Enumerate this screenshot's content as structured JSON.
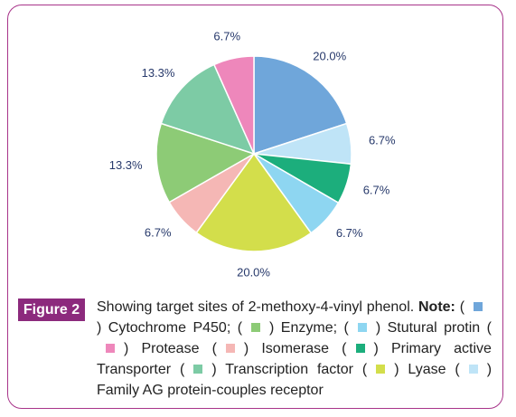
{
  "chart_data": {
    "type": "pie",
    "categories": [
      "Cytochrome P450;",
      "Family AG protein-couples receptor",
      "Primary active Transporter",
      "Stutural protin",
      "Lyase",
      "Isomerase",
      "Enzyme;",
      "Transcription factor",
      "Protease"
    ],
    "values": [
      20.0,
      6.7,
      6.7,
      6.7,
      20.0,
      6.7,
      13.3,
      13.3,
      6.7
    ],
    "value_labels": [
      "20.0%",
      "6.7%",
      "6.7%",
      "6.7%",
      "20.0%",
      "6.7%",
      "13.3%",
      "13.3%",
      "6.7%"
    ],
    "colors": [
      "#6fa6da",
      "#bfe4f7",
      "#1cae7c",
      "#8ed6f1",
      "#d3de4b",
      "#f5b7b5",
      "#8dcb76",
      "#7dcba5",
      "#ee87bb"
    ]
  },
  "caption": {
    "label": "Figure 2",
    "text": "Showing target sites of 2-methoxy-4-vinyl phenol.",
    "note": "Note:",
    "open": "(",
    "close": ")"
  }
}
